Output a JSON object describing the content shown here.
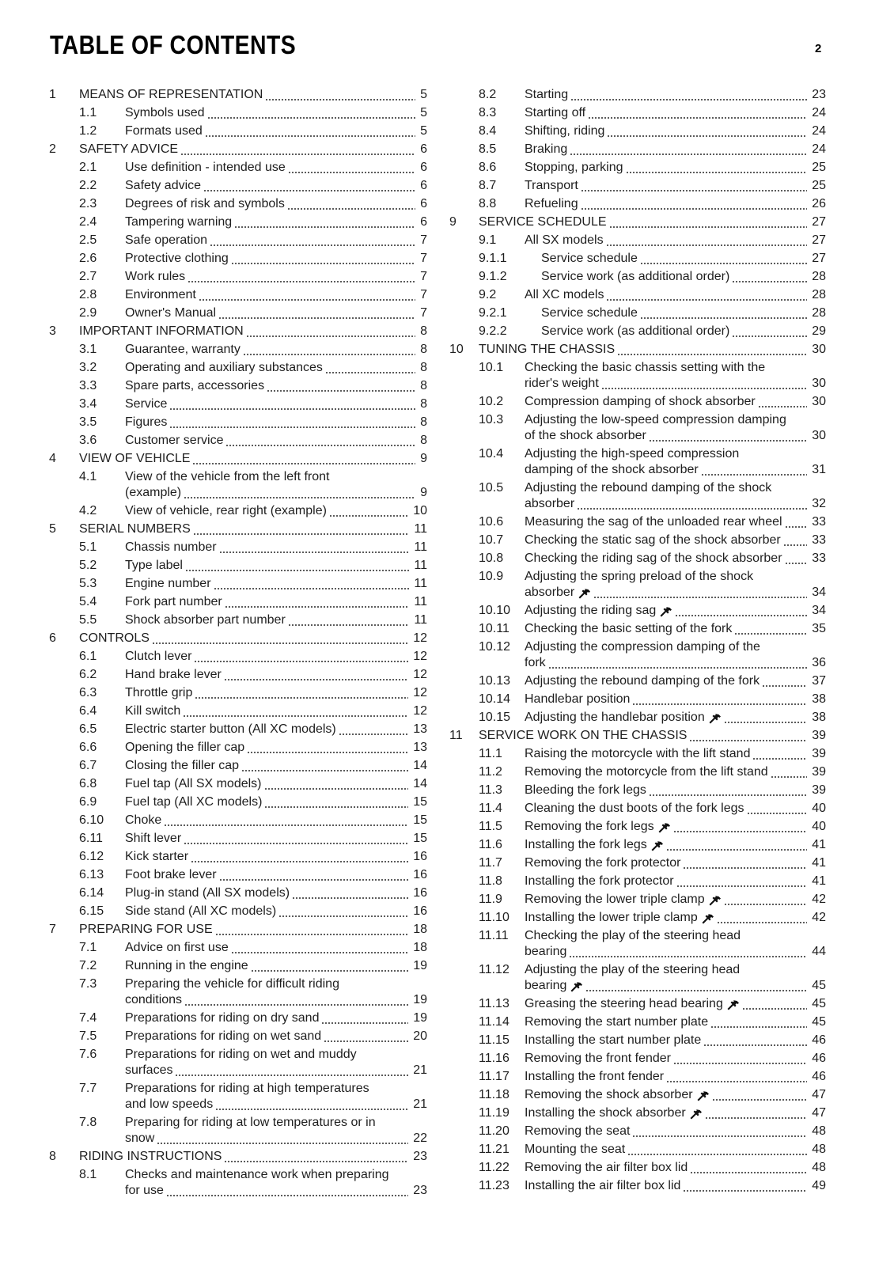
{
  "header": {
    "title": "TABLE OF CONTENTS",
    "page_number": "2"
  },
  "icons": {
    "wrench": "wrench-icon"
  },
  "toc": {
    "left": [
      {
        "n": "1",
        "t": [
          "MEANS OF REPRESENTATION"
        ],
        "p": "5",
        "l": 1
      },
      {
        "n": "1.1",
        "t": [
          "Symbols used"
        ],
        "p": "5",
        "l": 2
      },
      {
        "n": "1.2",
        "t": [
          "Formats used"
        ],
        "p": "5",
        "l": 2
      },
      {
        "n": "2",
        "t": [
          "SAFETY ADVICE"
        ],
        "p": "6",
        "l": 1
      },
      {
        "n": "2.1",
        "t": [
          "Use definition - intended use"
        ],
        "p": "6",
        "l": 2
      },
      {
        "n": "2.2",
        "t": [
          "Safety advice"
        ],
        "p": "6",
        "l": 2
      },
      {
        "n": "2.3",
        "t": [
          "Degrees of risk and symbols"
        ],
        "p": "6",
        "l": 2
      },
      {
        "n": "2.4",
        "t": [
          "Tampering warning"
        ],
        "p": "6",
        "l": 2
      },
      {
        "n": "2.5",
        "t": [
          "Safe operation"
        ],
        "p": "7",
        "l": 2
      },
      {
        "n": "2.6",
        "t": [
          "Protective clothing"
        ],
        "p": "7",
        "l": 2
      },
      {
        "n": "2.7",
        "t": [
          "Work rules"
        ],
        "p": "7",
        "l": 2
      },
      {
        "n": "2.8",
        "t": [
          "Environment"
        ],
        "p": "7",
        "l": 2
      },
      {
        "n": "2.9",
        "t": [
          "Owner's Manual"
        ],
        "p": "7",
        "l": 2
      },
      {
        "n": "3",
        "t": [
          "IMPORTANT INFORMATION"
        ],
        "p": "8",
        "l": 1
      },
      {
        "n": "3.1",
        "t": [
          "Guarantee, warranty"
        ],
        "p": "8",
        "l": 2
      },
      {
        "n": "3.2",
        "t": [
          "Operating and auxiliary substances"
        ],
        "p": "8",
        "l": 2
      },
      {
        "n": "3.3",
        "t": [
          "Spare parts, accessories"
        ],
        "p": "8",
        "l": 2
      },
      {
        "n": "3.4",
        "t": [
          "Service"
        ],
        "p": "8",
        "l": 2
      },
      {
        "n": "3.5",
        "t": [
          "Figures"
        ],
        "p": "8",
        "l": 2
      },
      {
        "n": "3.6",
        "t": [
          "Customer service"
        ],
        "p": "8",
        "l": 2
      },
      {
        "n": "4",
        "t": [
          "VIEW OF VEHICLE"
        ],
        "p": "9",
        "l": 1
      },
      {
        "n": "4.1",
        "t": [
          "View of the vehicle from the left front",
          "(example)"
        ],
        "p": "9",
        "l": 2
      },
      {
        "n": "4.2",
        "t": [
          "View of vehicle, rear right (example)"
        ],
        "p": "10",
        "l": 2
      },
      {
        "n": "5",
        "t": [
          "SERIAL NUMBERS"
        ],
        "p": "11",
        "l": 1
      },
      {
        "n": "5.1",
        "t": [
          "Chassis number"
        ],
        "p": "11",
        "l": 2
      },
      {
        "n": "5.2",
        "t": [
          "Type label"
        ],
        "p": "11",
        "l": 2
      },
      {
        "n": "5.3",
        "t": [
          "Engine number"
        ],
        "p": "11",
        "l": 2
      },
      {
        "n": "5.4",
        "t": [
          "Fork part number"
        ],
        "p": "11",
        "l": 2
      },
      {
        "n": "5.5",
        "t": [
          "Shock absorber part number"
        ],
        "p": "11",
        "l": 2
      },
      {
        "n": "6",
        "t": [
          "CONTROLS"
        ],
        "p": "12",
        "l": 1
      },
      {
        "n": "6.1",
        "t": [
          "Clutch lever"
        ],
        "p": "12",
        "l": 2
      },
      {
        "n": "6.2",
        "t": [
          "Hand brake lever"
        ],
        "p": "12",
        "l": 2
      },
      {
        "n": "6.3",
        "t": [
          "Throttle grip"
        ],
        "p": "12",
        "l": 2
      },
      {
        "n": "6.4",
        "t": [
          "Kill switch"
        ],
        "p": "12",
        "l": 2
      },
      {
        "n": "6.5",
        "t": [
          "Electric starter button (All XC models)"
        ],
        "p": "13",
        "l": 2
      },
      {
        "n": "6.6",
        "t": [
          "Opening the filler cap"
        ],
        "p": "13",
        "l": 2
      },
      {
        "n": "6.7",
        "t": [
          "Closing the filler cap"
        ],
        "p": "14",
        "l": 2
      },
      {
        "n": "6.8",
        "t": [
          "Fuel tap (All SX models)"
        ],
        "p": "14",
        "l": 2
      },
      {
        "n": "6.9",
        "t": [
          "Fuel tap (All XC models)"
        ],
        "p": "15",
        "l": 2
      },
      {
        "n": "6.10",
        "t": [
          "Choke"
        ],
        "p": "15",
        "l": 2
      },
      {
        "n": "6.11",
        "t": [
          "Shift lever"
        ],
        "p": "15",
        "l": 2
      },
      {
        "n": "6.12",
        "t": [
          "Kick starter"
        ],
        "p": "16",
        "l": 2
      },
      {
        "n": "6.13",
        "t": [
          "Foot brake lever"
        ],
        "p": "16",
        "l": 2
      },
      {
        "n": "6.14",
        "t": [
          "Plug-in stand (All SX models)"
        ],
        "p": "16",
        "l": 2
      },
      {
        "n": "6.15",
        "t": [
          "Side stand (All XC models)"
        ],
        "p": "16",
        "l": 2
      },
      {
        "n": "7",
        "t": [
          "PREPARING FOR USE"
        ],
        "p": "18",
        "l": 1
      },
      {
        "n": "7.1",
        "t": [
          "Advice on first use"
        ],
        "p": "18",
        "l": 2
      },
      {
        "n": "7.2",
        "t": [
          "Running in the engine"
        ],
        "p": "19",
        "l": 2
      },
      {
        "n": "7.3",
        "t": [
          "Preparing the vehicle for difficult riding",
          "conditions"
        ],
        "p": "19",
        "l": 2
      },
      {
        "n": "7.4",
        "t": [
          "Preparations for riding on dry sand"
        ],
        "p": "19",
        "l": 2
      },
      {
        "n": "7.5",
        "t": [
          "Preparations for riding on wet sand"
        ],
        "p": "20",
        "l": 2
      },
      {
        "n": "7.6",
        "t": [
          "Preparations for riding on wet and muddy",
          "surfaces"
        ],
        "p": "21",
        "l": 2
      },
      {
        "n": "7.7",
        "t": [
          "Preparations for riding at high temperatures",
          "and low speeds"
        ],
        "p": "21",
        "l": 2
      },
      {
        "n": "7.8",
        "t": [
          "Preparing for riding at low temperatures or in",
          "snow"
        ],
        "p": "22",
        "l": 2
      },
      {
        "n": "8",
        "t": [
          "RIDING INSTRUCTIONS"
        ],
        "p": "23",
        "l": 1
      },
      {
        "n": "8.1",
        "t": [
          "Checks and maintenance work when preparing",
          "for use"
        ],
        "p": "23",
        "l": 2
      }
    ],
    "right": [
      {
        "n": "8.2",
        "t": [
          "Starting"
        ],
        "p": "23",
        "l": 2
      },
      {
        "n": "8.3",
        "t": [
          "Starting off"
        ],
        "p": "24",
        "l": 2
      },
      {
        "n": "8.4",
        "t": [
          "Shifting, riding"
        ],
        "p": "24",
        "l": 2
      },
      {
        "n": "8.5",
        "t": [
          "Braking"
        ],
        "p": "24",
        "l": 2
      },
      {
        "n": "8.6",
        "t": [
          "Stopping, parking"
        ],
        "p": "25",
        "l": 2
      },
      {
        "n": "8.7",
        "t": [
          "Transport"
        ],
        "p": "25",
        "l": 2
      },
      {
        "n": "8.8",
        "t": [
          "Refueling"
        ],
        "p": "26",
        "l": 2
      },
      {
        "n": "9",
        "t": [
          "SERVICE SCHEDULE"
        ],
        "p": "27",
        "l": 1
      },
      {
        "n": "9.1",
        "t": [
          "All SX models"
        ],
        "p": "27",
        "l": 2
      },
      {
        "n": "9.1.1",
        "t": [
          "Service schedule"
        ],
        "p": "27",
        "l": 3
      },
      {
        "n": "9.1.2",
        "t": [
          "Service work (as additional order)"
        ],
        "p": "28",
        "l": 3
      },
      {
        "n": "9.2",
        "t": [
          "All XC models"
        ],
        "p": "28",
        "l": 2
      },
      {
        "n": "9.2.1",
        "t": [
          "Service schedule"
        ],
        "p": "28",
        "l": 3
      },
      {
        "n": "9.2.2",
        "t": [
          "Service work (as additional order)"
        ],
        "p": "29",
        "l": 3
      },
      {
        "n": "10",
        "t": [
          "TUNING THE CHASSIS"
        ],
        "p": "30",
        "l": 1
      },
      {
        "n": "10.1",
        "t": [
          "Checking the basic chassis setting with the",
          "rider's weight"
        ],
        "p": "30",
        "l": 2
      },
      {
        "n": "10.2",
        "t": [
          "Compression damping of shock absorber"
        ],
        "p": "30",
        "l": 2
      },
      {
        "n": "10.3",
        "t": [
          "Adjusting the low-speed compression damping",
          "of the shock absorber"
        ],
        "p": "30",
        "l": 2
      },
      {
        "n": "10.4",
        "t": [
          "Adjusting the high-speed compression",
          "damping of the shock absorber"
        ],
        "p": "31",
        "l": 2
      },
      {
        "n": "10.5",
        "t": [
          "Adjusting the rebound damping of the shock",
          "absorber"
        ],
        "p": "32",
        "l": 2
      },
      {
        "n": "10.6",
        "t": [
          "Measuring the sag of the unloaded rear wheel"
        ],
        "p": "33",
        "l": 2
      },
      {
        "n": "10.7",
        "t": [
          "Checking the static sag of the shock absorber"
        ],
        "p": "33",
        "l": 2
      },
      {
        "n": "10.8",
        "t": [
          "Checking the riding sag of the shock absorber"
        ],
        "p": "33",
        "l": 2
      },
      {
        "n": "10.9",
        "t": [
          "Adjusting the spring preload of the shock",
          "absorber"
        ],
        "p": "34",
        "l": 2,
        "w": true
      },
      {
        "n": "10.10",
        "t": [
          "Adjusting the riding sag"
        ],
        "p": "34",
        "l": 2,
        "w": true
      },
      {
        "n": "10.11",
        "t": [
          "Checking the basic setting of the fork"
        ],
        "p": "35",
        "l": 2
      },
      {
        "n": "10.12",
        "t": [
          "Adjusting the compression damping of the",
          "fork"
        ],
        "p": "36",
        "l": 2
      },
      {
        "n": "10.13",
        "t": [
          "Adjusting the rebound damping of the fork"
        ],
        "p": "37",
        "l": 2
      },
      {
        "n": "10.14",
        "t": [
          "Handlebar position"
        ],
        "p": "38",
        "l": 2
      },
      {
        "n": "10.15",
        "t": [
          "Adjusting the handlebar position"
        ],
        "p": "38",
        "l": 2,
        "w": true
      },
      {
        "n": "11",
        "t": [
          "SERVICE WORK ON THE CHASSIS"
        ],
        "p": "39",
        "l": 1
      },
      {
        "n": "11.1",
        "t": [
          "Raising the motorcycle with the lift stand"
        ],
        "p": "39",
        "l": 2
      },
      {
        "n": "11.2",
        "t": [
          "Removing the motorcycle from the lift stand"
        ],
        "p": "39",
        "l": 2
      },
      {
        "n": "11.3",
        "t": [
          "Bleeding the fork legs"
        ],
        "p": "39",
        "l": 2
      },
      {
        "n": "11.4",
        "t": [
          "Cleaning the dust boots of the fork legs"
        ],
        "p": "40",
        "l": 2
      },
      {
        "n": "11.5",
        "t": [
          "Removing the fork legs"
        ],
        "p": "40",
        "l": 2,
        "w": true
      },
      {
        "n": "11.6",
        "t": [
          "Installing the fork legs"
        ],
        "p": "41",
        "l": 2,
        "w": true
      },
      {
        "n": "11.7",
        "t": [
          "Removing the fork protector"
        ],
        "p": "41",
        "l": 2
      },
      {
        "n": "11.8",
        "t": [
          "Installing the fork protector"
        ],
        "p": "41",
        "l": 2
      },
      {
        "n": "11.9",
        "t": [
          "Removing the lower triple clamp"
        ],
        "p": "42",
        "l": 2,
        "w": true
      },
      {
        "n": "11.10",
        "t": [
          "Installing the lower triple clamp"
        ],
        "p": "42",
        "l": 2,
        "w": true
      },
      {
        "n": "11.11",
        "t": [
          "Checking the play of the steering head",
          "bearing"
        ],
        "p": "44",
        "l": 2
      },
      {
        "n": "11.12",
        "t": [
          "Adjusting the play of the steering head",
          "bearing"
        ],
        "p": "45",
        "l": 2,
        "w": true
      },
      {
        "n": "11.13",
        "t": [
          "Greasing the steering head bearing"
        ],
        "p": "45",
        "l": 2,
        "w": true
      },
      {
        "n": "11.14",
        "t": [
          "Removing the start number plate"
        ],
        "p": "45",
        "l": 2
      },
      {
        "n": "11.15",
        "t": [
          "Installing the start number plate"
        ],
        "p": "46",
        "l": 2
      },
      {
        "n": "11.16",
        "t": [
          "Removing the front fender"
        ],
        "p": "46",
        "l": 2
      },
      {
        "n": "11.17",
        "t": [
          "Installing the front fender"
        ],
        "p": "46",
        "l": 2
      },
      {
        "n": "11.18",
        "t": [
          "Removing the shock absorber"
        ],
        "p": "47",
        "l": 2,
        "w": true
      },
      {
        "n": "11.19",
        "t": [
          "Installing the shock absorber"
        ],
        "p": "47",
        "l": 2,
        "w": true
      },
      {
        "n": "11.20",
        "t": [
          "Removing the seat"
        ],
        "p": "48",
        "l": 2
      },
      {
        "n": "11.21",
        "t": [
          "Mounting the seat"
        ],
        "p": "48",
        "l": 2
      },
      {
        "n": "11.22",
        "t": [
          "Removing the air filter box lid"
        ],
        "p": "48",
        "l": 2
      },
      {
        "n": "11.23",
        "t": [
          "Installing the air filter box lid"
        ],
        "p": "49",
        "l": 2
      }
    ]
  }
}
